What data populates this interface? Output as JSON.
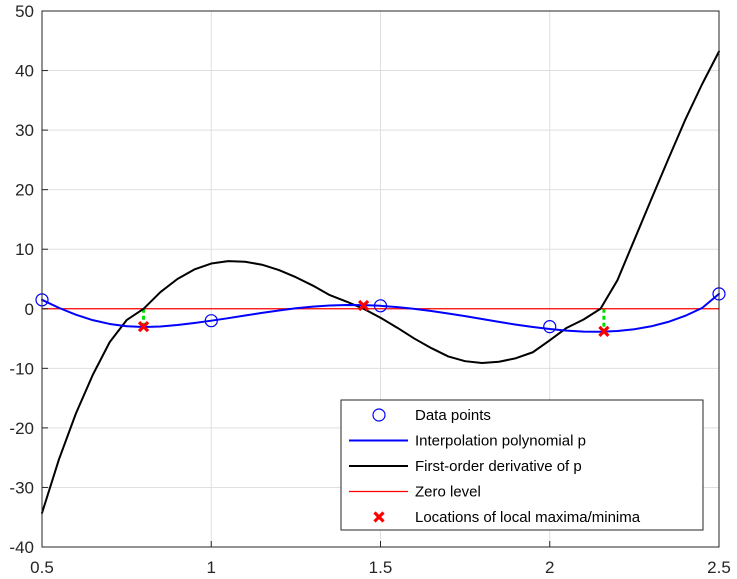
{
  "chart_data": {
    "type": "line",
    "title": "",
    "xlabel": "",
    "ylabel": "",
    "xlim": [
      0.5,
      2.5
    ],
    "ylim": [
      -40,
      50
    ],
    "x_ticks": [
      0.5,
      1,
      1.5,
      2,
      2.5
    ],
    "x_tick_labels": [
      "0.5",
      "1",
      "1.5",
      "2",
      "2.5"
    ],
    "y_ticks": [
      -40,
      -30,
      -20,
      -10,
      0,
      10,
      20,
      30,
      40,
      50
    ],
    "y_tick_labels": [
      "-40",
      "-30",
      "-20",
      "-10",
      "0",
      "10",
      "20",
      "30",
      "40",
      "50"
    ],
    "grid": true,
    "legend_location": "bottom-right",
    "series": [
      {
        "name": "Data points",
        "style": "markers",
        "marker": "circle",
        "color": "#0000ff",
        "x": [
          0.5,
          1.0,
          1.5,
          2.0,
          2.5
        ],
        "y": [
          1.5,
          -2.0,
          0.5,
          -3.0,
          2.5
        ]
      },
      {
        "name": "Interpolation polynomial p",
        "style": "line",
        "color": "#0000ff",
        "x": [
          0.5,
          0.55,
          0.6,
          0.65,
          0.7,
          0.75,
          0.8,
          0.85,
          0.9,
          0.95,
          1.0,
          1.05,
          1.1,
          1.15,
          1.2,
          1.25,
          1.3,
          1.35,
          1.4,
          1.45,
          1.5,
          1.55,
          1.6,
          1.65,
          1.7,
          1.75,
          1.8,
          1.85,
          1.9,
          1.95,
          2.0,
          2.05,
          2.1,
          2.15,
          2.2,
          2.25,
          2.3,
          2.35,
          2.4,
          2.45,
          2.5
        ],
        "y": [
          1.5,
          0.15,
          -1.0,
          -1.91,
          -2.55,
          -2.93,
          -3.06,
          -2.98,
          -2.73,
          -2.38,
          -2.0,
          -1.58,
          -1.13,
          -0.69,
          -0.28,
          0.08,
          0.36,
          0.55,
          0.64,
          0.62,
          0.5,
          0.28,
          -0.02,
          -0.38,
          -0.79,
          -1.24,
          -1.72,
          -2.2,
          -2.66,
          -3.06,
          -3.4,
          -3.67,
          -3.83,
          -3.86,
          -3.74,
          -3.44,
          -2.94,
          -2.2,
          -1.19,
          0.13,
          2.5
        ]
      },
      {
        "name": "First-order derivative of p",
        "style": "line",
        "color": "#000000",
        "x": [
          0.5,
          0.55,
          0.6,
          0.65,
          0.7,
          0.75,
          0.8,
          0.85,
          0.9,
          0.95,
          1.0,
          1.05,
          1.1,
          1.15,
          1.2,
          1.25,
          1.3,
          1.35,
          1.4,
          1.45,
          1.5,
          1.55,
          1.6,
          1.65,
          1.7,
          1.75,
          1.8,
          1.85,
          1.9,
          1.95,
          2.0,
          2.05,
          2.1,
          2.15,
          2.2,
          2.25,
          2.3,
          2.35,
          2.4,
          2.45,
          2.5
        ],
        "y": [
          -34.3,
          -25.3,
          -17.6,
          -11.1,
          -5.6,
          -1.9,
          0.0,
          2.8,
          5.0,
          6.6,
          7.6,
          8.0,
          7.9,
          7.4,
          6.5,
          5.3,
          3.9,
          2.3,
          1.2,
          0.0,
          -1.5,
          -3.2,
          -5.0,
          -6.6,
          -8.0,
          -8.8,
          -9.1,
          -8.9,
          -8.3,
          -7.3,
          -5.3,
          -3.2,
          -1.8,
          0.0,
          4.8,
          11.6,
          18.4,
          25.1,
          31.7,
          37.7,
          43.2
        ]
      },
      {
        "name": "Zero level",
        "style": "line",
        "color": "#ff0000",
        "x": [
          0.5,
          2.5
        ],
        "y": [
          0,
          0
        ]
      },
      {
        "name": "Locations of local maxima/minima",
        "style": "markers",
        "marker": "x",
        "color": "#ff0000",
        "x": [
          0.8,
          1.45,
          2.16
        ],
        "y": [
          -3.0,
          0.55,
          -3.8
        ]
      }
    ],
    "annotations": [
      {
        "type": "dashed-vertical",
        "color": "#00dd00",
        "x": 0.8,
        "y_from": 0,
        "y_to": -3.0
      },
      {
        "type": "dashed-vertical",
        "color": "#00dd00",
        "x": 2.16,
        "y_from": 0,
        "y_to": -3.8
      }
    ]
  }
}
